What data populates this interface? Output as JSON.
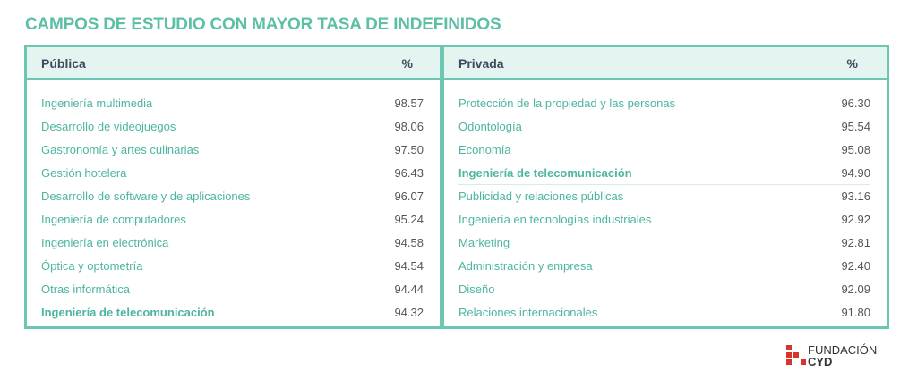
{
  "title": "CAMPOS DE ESTUDIO CON MAYOR TASA DE INDEFINIDOS",
  "tables": [
    {
      "header": [
        "Pública",
        "%"
      ],
      "rows": [
        {
          "label": "Ingeniería multimedia",
          "value": "98.57"
        },
        {
          "label": "Desarrollo de videojuegos",
          "value": "98.06"
        },
        {
          "label": "Gastronomía y artes culinarias",
          "value": "97.50"
        },
        {
          "label": "Gestión hotelera",
          "value": "96.43"
        },
        {
          "label": "Desarrollo de software y de aplicaciones",
          "value": "96.07"
        },
        {
          "label": "Ingeniería de computadores",
          "value": "95.24"
        },
        {
          "label": "Ingeniería en electrónica",
          "value": "94.58"
        },
        {
          "label": "Óptica y optometría",
          "value": "94.54"
        },
        {
          "label": "Otras informática",
          "value": "94.44"
        },
        {
          "label": "Ingeniería de telecomunicación",
          "value": "94.32",
          "bold": true
        }
      ]
    },
    {
      "header": [
        "Privada",
        "%"
      ],
      "rows": [
        {
          "label": "Protección de la propiedad y las personas",
          "value": "96.30"
        },
        {
          "label": "Odontología",
          "value": "95.54"
        },
        {
          "label": "Economía",
          "value": "95.08"
        },
        {
          "label": "Ingeniería de telecomunicación",
          "value": "94.90",
          "bold": true
        },
        {
          "label": "Publicidad y relaciones públicas",
          "value": "93.16"
        },
        {
          "label": "Ingeniería en tecnologías industriales",
          "value": "92.92"
        },
        {
          "label": "Marketing",
          "value": "92.81"
        },
        {
          "label": "Administración y empresa",
          "value": "92.40"
        },
        {
          "label": "Diseño",
          "value": "92.09"
        },
        {
          "label": "Relaciones internacionales",
          "value": "91.80"
        }
      ]
    }
  ],
  "logo": {
    "line1": "FUNDACIÓN",
    "line2": "CYD"
  }
}
